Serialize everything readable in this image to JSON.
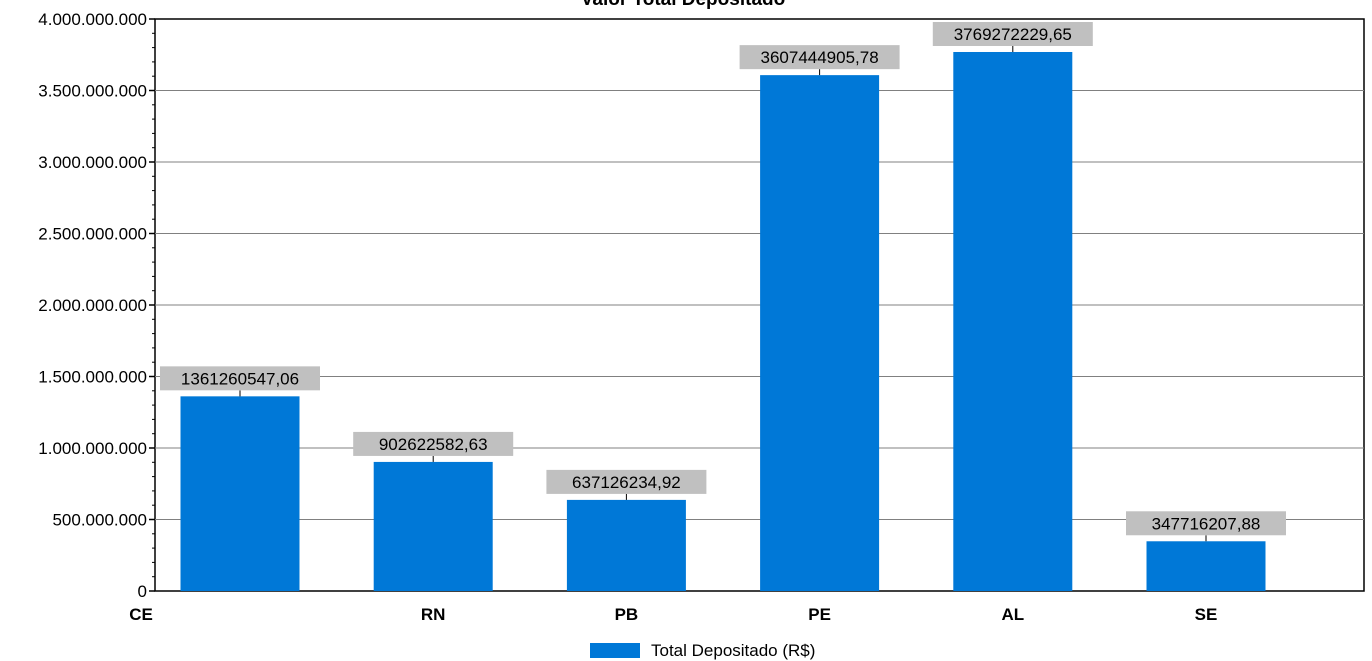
{
  "chart_data": {
    "type": "bar",
    "title": "Valor Total Depositado",
    "categories": [
      "CE",
      "RN",
      "PB",
      "PE",
      "AL",
      "SE"
    ],
    "series": [
      {
        "name": "Total Depositado (R$)",
        "values": [
          1361260547.06,
          902622582.63,
          637126234.92,
          3607444905.78,
          3769272229.65,
          347716207.88
        ],
        "value_labels": [
          "1361260547,06",
          "902622582,63",
          "637126234,92",
          "3607444905,78",
          "3769272229,65",
          "347716207,88"
        ]
      }
    ],
    "yticks": [
      0,
      500000000,
      1000000000,
      1500000000,
      2000000000,
      2500000000,
      3000000000,
      3500000000,
      4000000000
    ],
    "ytick_labels": [
      "0",
      "500.000.000",
      "1.000.000.000",
      "1.500.000.000",
      "2.000.000.000",
      "2.500.000.000",
      "3.000.000.000",
      "3.500.000.000",
      "4.000.000.000"
    ],
    "ylim": [
      0,
      4000000000
    ],
    "grid": true,
    "legend_position": "bottom-center",
    "colors": {
      "bar": "#0078D7",
      "label_bg": "#C0C0C0",
      "grid": "#808080"
    }
  }
}
